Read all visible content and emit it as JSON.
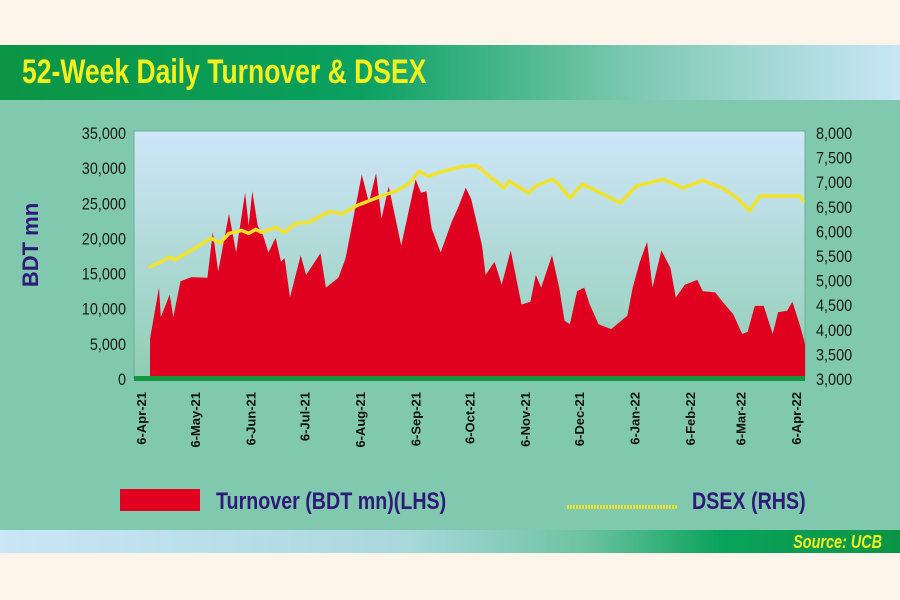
{
  "header": {
    "title": "52-Week Daily Turnover & DSEX"
  },
  "footer": {
    "source": "Source: UCB"
  },
  "colors": {
    "turnover": "#e0001f",
    "dsex": "#f2e32a",
    "baseline": "#13973f",
    "text": "#2e1a78",
    "title": "#f4f01e"
  },
  "chart_data": {
    "type": "area+line",
    "title": "52-Week Daily Turnover & DSEX",
    "ylabel": "BDT mn",
    "ylim": [
      0,
      35000
    ],
    "y2lim": [
      3000,
      8000
    ],
    "yticks": [
      "35,000",
      "30,000",
      "25,000",
      "20,000",
      "15,000",
      "10,000",
      "5,000",
      "0"
    ],
    "yticks_values": [
      35000,
      30000,
      25000,
      20000,
      15000,
      10000,
      5000,
      0
    ],
    "y2ticks": [
      "8,000",
      "7,500",
      "7,000",
      "6,500",
      "6,000",
      "5,500",
      "5,000",
      "4,500",
      "4,000",
      "3,500",
      "3,000"
    ],
    "y2ticks_values": [
      8000,
      7500,
      7000,
      6500,
      6000,
      5500,
      5000,
      4500,
      4000,
      3500,
      3000
    ],
    "xlim": [
      "2021-04-06",
      "2022-04-06"
    ],
    "xticks": [
      "6-Apr-21",
      "6-May-21",
      "6-Jun-21",
      "6-Jul-21",
      "6-Aug-21",
      "6-Sep-21",
      "6-Oct-21",
      "6-Nov-21",
      "6-Dec-21",
      "6-Jan-22",
      "6-Feb-22",
      "6-Mar-22",
      "6-Apr-22"
    ],
    "xticks_dates": [
      "2021-04-06",
      "2021-05-06",
      "2021-06-06",
      "2021-07-06",
      "2021-08-06",
      "2021-09-06",
      "2021-10-06",
      "2021-11-06",
      "2021-12-06",
      "2022-01-06",
      "2022-02-06",
      "2022-03-06",
      "2022-04-06"
    ],
    "grid": false,
    "legend": "bottom",
    "series": [
      {
        "name": "Turnover (BDT mn)(LHS)",
        "type": "area",
        "axis": "left",
        "x": [
          "2021-04-06",
          "2021-04-11",
          "2021-04-12",
          "2021-04-17",
          "2021-04-19",
          "2021-04-23",
          "2021-04-29",
          "2021-05-08",
          "2021-05-11",
          "2021-05-14",
          "2021-05-20",
          "2021-05-24",
          "2021-05-29",
          "2021-05-31",
          "2021-06-02",
          "2021-06-05",
          "2021-06-08",
          "2021-06-11",
          "2021-06-15",
          "2021-06-18",
          "2021-06-20",
          "2021-06-23",
          "2021-06-29",
          "2021-07-02",
          "2021-07-10",
          "2021-07-13",
          "2021-07-20",
          "2021-07-24",
          "2021-08-02",
          "2021-08-06",
          "2021-08-10",
          "2021-08-13",
          "2021-08-17",
          "2021-08-24",
          "2021-09-01",
          "2021-09-04",
          "2021-09-07",
          "2021-09-10",
          "2021-09-15",
          "2021-09-21",
          "2021-09-25",
          "2021-09-29",
          "2021-10-02",
          "2021-10-08",
          "2021-10-10",
          "2021-10-15",
          "2021-10-19",
          "2021-10-24",
          "2021-10-30",
          "2021-11-04",
          "2021-11-07",
          "2021-11-10",
          "2021-11-16",
          "2021-11-20",
          "2021-11-23",
          "2021-11-26",
          "2021-11-30",
          "2021-12-04",
          "2021-12-07",
          "2021-12-12",
          "2021-12-19",
          "2021-12-28",
          "2021-12-31",
          "2022-01-04",
          "2022-01-08",
          "2022-01-11",
          "2022-01-16",
          "2022-01-21",
          "2022-01-24",
          "2022-01-29",
          "2022-02-05",
          "2022-02-08",
          "2022-02-15",
          "2022-02-19",
          "2022-02-25",
          "2022-03-02",
          "2022-03-05",
          "2022-03-09",
          "2022-03-14",
          "2022-03-19",
          "2022-03-22",
          "2022-03-27",
          "2022-03-30",
          "2022-04-03",
          "2022-04-06"
        ],
        "values": [
          5740,
          13000,
          8800,
          12000,
          8800,
          13900,
          14500,
          14400,
          20900,
          15300,
          23500,
          18000,
          26500,
          21800,
          26700,
          21800,
          20400,
          18000,
          20100,
          16700,
          17200,
          11600,
          17600,
          14800,
          17900,
          13000,
          14400,
          17200,
          29100,
          25100,
          29300,
          22800,
          27400,
          19000,
          28400,
          26500,
          26700,
          21400,
          18000,
          22300,
          24600,
          27200,
          25600,
          19000,
          14800,
          16700,
          13400,
          18300,
          10600,
          11000,
          14800,
          13000,
          17600,
          13000,
          8300,
          7800,
          12500,
          13000,
          10600,
          7800,
          7100,
          9000,
          13000,
          16700,
          19500,
          13000,
          18300,
          15800,
          11600,
          13400,
          14100,
          12500,
          12300,
          11000,
          9200,
          6400,
          6700,
          10400,
          10400,
          6400,
          9500,
          9700,
          11000,
          7800,
          5000
        ]
      },
      {
        "name": "DSEX (RHS)",
        "type": "line",
        "axis": "right",
        "x": [
          "2021-04-06",
          "2021-04-12",
          "2021-04-17",
          "2021-04-20",
          "2021-05-01",
          "2021-05-10",
          "2021-05-15",
          "2021-05-20",
          "2021-05-27",
          "2021-05-31",
          "2021-06-04",
          "2021-06-07",
          "2021-06-15",
          "2021-06-20",
          "2021-06-26",
          "2021-07-03",
          "2021-07-15",
          "2021-07-22",
          "2021-07-30",
          "2021-08-06",
          "2021-08-13",
          "2021-08-21",
          "2021-08-28",
          "2021-09-03",
          "2021-09-08",
          "2021-09-16",
          "2021-09-27",
          "2021-10-05",
          "2021-10-14",
          "2021-10-16",
          "2021-10-20",
          "2021-10-23",
          "2021-11-03",
          "2021-11-07",
          "2021-11-16",
          "2021-11-19",
          "2021-11-26",
          "2021-12-03",
          "2021-12-11",
          "2021-12-24",
          "2022-01-02",
          "2022-01-17",
          "2022-01-28",
          "2022-02-08",
          "2022-02-19",
          "2022-02-27",
          "2022-03-06",
          "2022-03-12",
          "2022-03-21",
          "2022-04-03",
          "2022-04-05"
        ],
        "values": [
          5280,
          5380,
          5480,
          5420,
          5660,
          5860,
          5760,
          5960,
          6020,
          5960,
          6040,
          5980,
          6080,
          5980,
          6160,
          6180,
          6400,
          6360,
          6520,
          6620,
          6720,
          6820,
          6960,
          7220,
          7120,
          7220,
          7320,
          7340,
          7060,
          7020,
          6880,
          7020,
          6780,
          6920,
          7060,
          6980,
          6680,
          6960,
          6820,
          6580,
          6920,
          7060,
          6880,
          7040,
          6880,
          6680,
          6420,
          6720,
          6720,
          6720,
          6620
        ]
      }
    ]
  }
}
